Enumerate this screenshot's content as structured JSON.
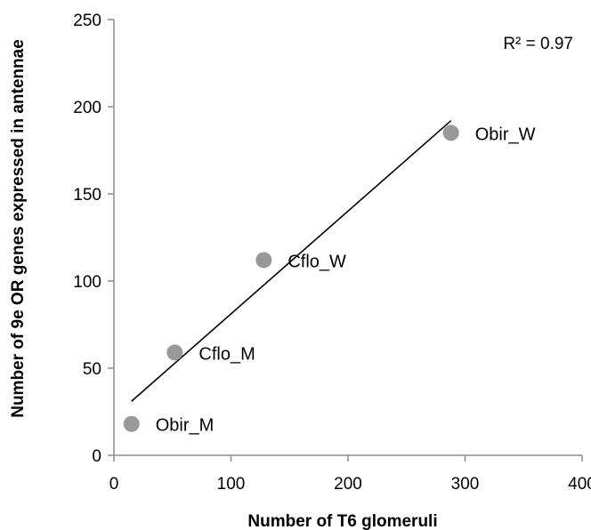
{
  "chart_data": {
    "type": "scatter",
    "title": "",
    "xlabel": "Number of T6 glomeruli",
    "ylabel": "Number of 9e OR genes expressed in antennae",
    "xlim": [
      0,
      400
    ],
    "ylim": [
      0,
      250
    ],
    "x_ticks": [
      0,
      100,
      200,
      300,
      400
    ],
    "y_ticks": [
      0,
      50,
      100,
      150,
      200,
      250
    ],
    "grid": false,
    "legend": "none",
    "marker_color": "#999999",
    "points": [
      {
        "label": "Obir_M",
        "x": 15,
        "y": 18
      },
      {
        "label": "Cflo_M",
        "x": 52,
        "y": 59
      },
      {
        "label": "Cflo_W",
        "x": 128,
        "y": 112
      },
      {
        "label": "Obir_W",
        "x": 288,
        "y": 185
      }
    ],
    "trendline": {
      "type": "linear",
      "x_start": 15,
      "y_start": 31,
      "x_end": 288,
      "y_end": 192
    },
    "annotation": "R² = 0.97"
  }
}
